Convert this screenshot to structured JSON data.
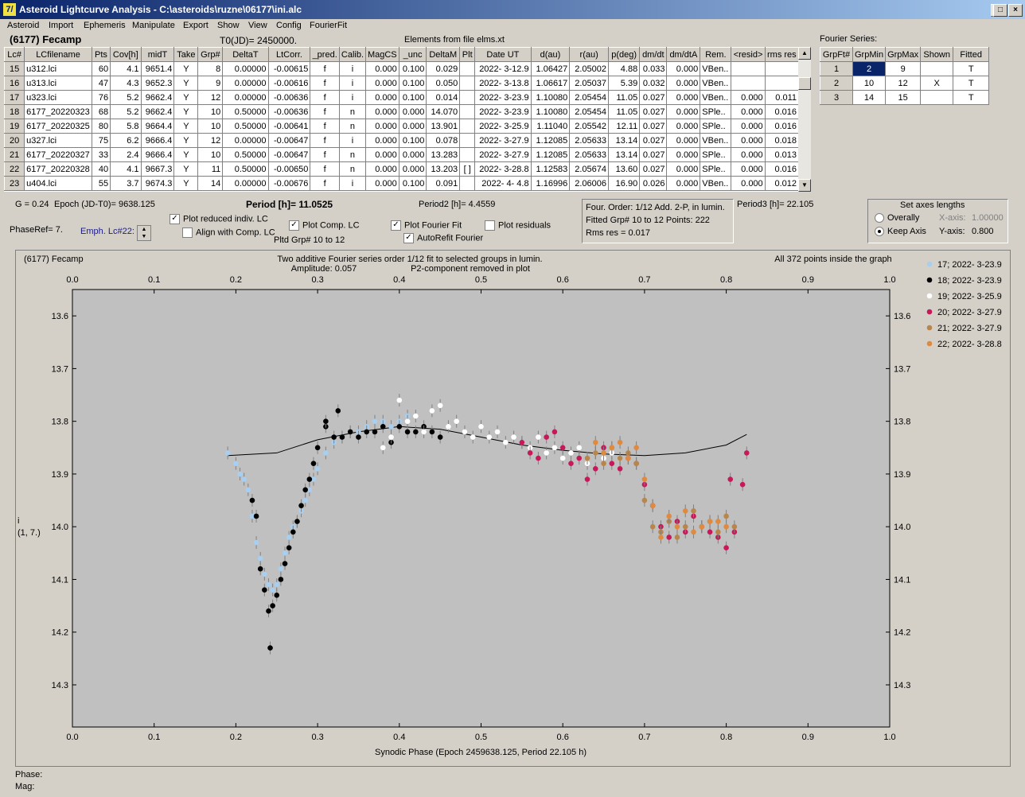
{
  "window": {
    "title": "Asteroid Lightcurve Analysis - C:\\asteroids\\ruzne\\06177\\ini.alc",
    "icon_label": "7/"
  },
  "menu": [
    "Asteroid",
    "Import",
    "Ephemeris",
    "Manipulate",
    "Export",
    "Show",
    "View",
    "Config",
    "FourierFit"
  ],
  "header": {
    "asteroid": "(6177) Fecamp",
    "t0": "T0(JD)= 2450000.",
    "elements": "Elements from file elms.xt"
  },
  "lc_table": {
    "columns": [
      "Lc#",
      "LCfilename",
      "Pts",
      "Cov[h]",
      "midT",
      "Take",
      "Grp#",
      "DeltaT",
      "LtCorr.",
      "_pred.",
      "Calib.",
      "MagCS",
      "_unc",
      "DeltaM",
      "Plt",
      "Date UT",
      "d(au)",
      "r(au)",
      "p(deg)",
      "dm/dt",
      "dm/dtA",
      "Rem.",
      "<resid>",
      "rms res"
    ],
    "rows": [
      [
        "15",
        "u312.lci",
        "60",
        "4.1",
        "9651.4",
        "Y",
        "8",
        "0.00000",
        "-0.00615",
        "f",
        "i",
        "0.000",
        "0.100",
        "0.029",
        "",
        "2022- 3-12.9",
        "1.06427",
        "2.05002",
        "4.88",
        "0.033",
        "0.000",
        "VBen..",
        "",
        ""
      ],
      [
        "16",
        "u313.lci",
        "47",
        "4.3",
        "9652.3",
        "Y",
        "9",
        "0.00000",
        "-0.00616",
        "f",
        "i",
        "0.000",
        "0.100",
        "0.050",
        "",
        "2022- 3-13.8",
        "1.06617",
        "2.05037",
        "5.39",
        "0.032",
        "0.000",
        "VBen..",
        "",
        ""
      ],
      [
        "17",
        "u323.lci",
        "76",
        "5.2",
        "9662.4",
        "Y",
        "12",
        "0.00000",
        "-0.00636",
        "f",
        "i",
        "0.000",
        "0.100",
        "0.014",
        "",
        "2022- 3-23.9",
        "1.10080",
        "2.05454",
        "11.05",
        "0.027",
        "0.000",
        "VBen..",
        "0.000",
        "0.011"
      ],
      [
        "18",
        "6177_20220323",
        "68",
        "5.2",
        "9662.4",
        "Y",
        "10",
        "0.50000",
        "-0.00636",
        "f",
        "n",
        "0.000",
        "0.000",
        "14.070",
        "",
        "2022- 3-23.9",
        "1.10080",
        "2.05454",
        "11.05",
        "0.027",
        "0.000",
        "SPle..",
        "0.000",
        "0.016"
      ],
      [
        "19",
        "6177_20220325",
        "80",
        "5.8",
        "9664.4",
        "Y",
        "10",
        "0.50000",
        "-0.00641",
        "f",
        "n",
        "0.000",
        "0.000",
        "13.901",
        "",
        "2022- 3-25.9",
        "1.11040",
        "2.05542",
        "12.11",
        "0.027",
        "0.000",
        "SPle..",
        "0.000",
        "0.016"
      ],
      [
        "20",
        "u327.lci",
        "75",
        "6.2",
        "9666.4",
        "Y",
        "12",
        "0.00000",
        "-0.00647",
        "f",
        "i",
        "0.000",
        "0.100",
        "0.078",
        "",
        "2022- 3-27.9",
        "1.12085",
        "2.05633",
        "13.14",
        "0.027",
        "0.000",
        "VBen..",
        "0.000",
        "0.018"
      ],
      [
        "21",
        "6177_20220327",
        "33",
        "2.4",
        "9666.4",
        "Y",
        "10",
        "0.50000",
        "-0.00647",
        "f",
        "n",
        "0.000",
        "0.000",
        "13.283",
        "",
        "2022- 3-27.9",
        "1.12085",
        "2.05633",
        "13.14",
        "0.027",
        "0.000",
        "SPle..",
        "0.000",
        "0.013"
      ],
      [
        "22",
        "6177_20220328",
        "40",
        "4.1",
        "9667.3",
        "Y",
        "11",
        "0.50000",
        "-0.00650",
        "f",
        "n",
        "0.000",
        "0.000",
        "13.203",
        "[ ]",
        "2022- 3-28.8",
        "1.12583",
        "2.05674",
        "13.60",
        "0.027",
        "0.000",
        "SPle..",
        "0.000",
        "0.016"
      ],
      [
        "23",
        "u404.lci",
        "55",
        "3.7",
        "9674.3",
        "Y",
        "14",
        "0.00000",
        "-0.00676",
        "f",
        "i",
        "0.000",
        "0.100",
        "0.091",
        "",
        "2022- 4- 4.8",
        "1.16996",
        "2.06006",
        "16.90",
        "0.026",
        "0.000",
        "VBen..",
        "0.000",
        "0.012"
      ]
    ]
  },
  "fourier_series": {
    "label": "Fourier Series:",
    "columns": [
      "GrpFt#",
      "GrpMin",
      "GrpMax",
      "Shown",
      "Fitted"
    ],
    "rows": [
      [
        "1",
        "2",
        "9",
        "",
        "T"
      ],
      [
        "2",
        "10",
        "12",
        "X",
        "T"
      ],
      [
        "3",
        "14",
        "15",
        "",
        "T"
      ]
    ]
  },
  "controls": {
    "g": "G = 0.24",
    "epoch": "Epoch (JD-T0)= 9638.125",
    "period": "Period [h]= 11.0525",
    "period2": "Period2 [h]= 4.4559",
    "period3": "Period3 [h]= 22.105",
    "phaseref": "PhaseRef= 7.",
    "emph": "Emph. Lc#22:",
    "plot_reduced": "Plot reduced indiv. LC",
    "align_comp": "Align with Comp. LC",
    "plot_comp": "Plot Comp. LC",
    "pltd_grp": "Pltd Grp#  10 to   12",
    "plot_fourier": "Plot Fourier Fit",
    "autorefit": "AutoRefit Fourier",
    "plot_residuals": "Plot residuals",
    "four_order": "Four. Order:  1/12    Add. 2-P, in lumin.",
    "fitted": "Fitted Grp# 10 to 12 Points: 222",
    "rms": "Rms res      = 0.017",
    "axes_title": "Set axes lengths",
    "overally": "Overally",
    "keep_axis": "Keep Axis",
    "xaxis_label": "X-axis:",
    "xaxis_value": "1.00000",
    "yaxis_label": "Y-axis:",
    "yaxis_value": "0.800"
  },
  "plot": {
    "name": "(6177) Fecamp",
    "subtitle1": "Two additive Fourier series order 1/12 fit to selected groups in lumin.",
    "subtitle2": "Amplitude: 0.057",
    "subtitle3": "P2-component removed in plot",
    "inside": "All 372 points inside the graph",
    "xlabel": "Synodic Phase (Epoch 2459638.125, Period 22.105 h)",
    "ylabel": "i",
    "ylabel2": "(1, 7.)"
  },
  "chart_data": {
    "type": "scatter",
    "xlim": [
      0.0,
      1.0
    ],
    "ylim": [
      13.55,
      14.38
    ],
    "y_inverted": true,
    "x_ticks": [
      "0.0",
      "0.1",
      "0.2",
      "0.3",
      "0.4",
      "0.5",
      "0.6",
      "0.7",
      "0.8",
      "0.9",
      "1.0"
    ],
    "y_ticks": [
      "13.6",
      "13.7",
      "13.8",
      "13.9",
      "14.0",
      "14.1",
      "14.2",
      "14.3"
    ],
    "legend_position": "right",
    "series": [
      {
        "name": "17; 2022- 3-23.9",
        "color": "#a8cef0",
        "points": [
          [
            0.19,
            13.86
          ],
          [
            0.2,
            13.88
          ],
          [
            0.205,
            13.9
          ],
          [
            0.21,
            13.91
          ],
          [
            0.215,
            13.93
          ],
          [
            0.22,
            13.98
          ],
          [
            0.225,
            14.03
          ],
          [
            0.23,
            14.06
          ],
          [
            0.235,
            14.09
          ],
          [
            0.24,
            14.11
          ],
          [
            0.245,
            14.12
          ],
          [
            0.25,
            14.11
          ],
          [
            0.255,
            14.08
          ],
          [
            0.26,
            14.05
          ],
          [
            0.265,
            14.02
          ],
          [
            0.27,
            14.0
          ],
          [
            0.275,
            13.99
          ],
          [
            0.28,
            13.97
          ],
          [
            0.285,
            13.95
          ],
          [
            0.29,
            13.93
          ],
          [
            0.295,
            13.91
          ],
          [
            0.3,
            13.89
          ],
          [
            0.31,
            13.86
          ],
          [
            0.32,
            13.84
          ],
          [
            0.33,
            13.83
          ],
          [
            0.34,
            13.82
          ],
          [
            0.35,
            13.82
          ],
          [
            0.36,
            13.81
          ],
          [
            0.37,
            13.8
          ],
          [
            0.38,
            13.8
          ],
          [
            0.39,
            13.81
          ],
          [
            0.4,
            13.8
          ],
          [
            0.41,
            13.79
          ]
        ]
      },
      {
        "name": "18; 2022- 3-23.9",
        "color": "#000000",
        "points": [
          [
            0.22,
            13.95
          ],
          [
            0.225,
            13.98
          ],
          [
            0.23,
            14.08
          ],
          [
            0.235,
            14.12
          ],
          [
            0.24,
            14.16
          ],
          [
            0.242,
            14.23
          ],
          [
            0.245,
            14.15
          ],
          [
            0.25,
            14.13
          ],
          [
            0.255,
            14.1
          ],
          [
            0.26,
            14.07
          ],
          [
            0.265,
            14.04
          ],
          [
            0.27,
            14.01
          ],
          [
            0.275,
            13.99
          ],
          [
            0.28,
            13.96
          ],
          [
            0.285,
            13.93
          ],
          [
            0.29,
            13.91
          ],
          [
            0.295,
            13.88
          ],
          [
            0.3,
            13.85
          ],
          [
            0.31,
            13.81
          ],
          [
            0.32,
            13.83
          ],
          [
            0.33,
            13.83
          ],
          [
            0.34,
            13.82
          ],
          [
            0.35,
            13.83
          ],
          [
            0.36,
            13.82
          ],
          [
            0.37,
            13.82
          ],
          [
            0.38,
            13.81
          ],
          [
            0.39,
            13.84
          ],
          [
            0.4,
            13.81
          ],
          [
            0.41,
            13.82
          ],
          [
            0.42,
            13.82
          ],
          [
            0.43,
            13.81
          ],
          [
            0.44,
            13.82
          ],
          [
            0.45,
            13.83
          ],
          [
            0.325,
            13.78
          ],
          [
            0.31,
            13.8
          ]
        ]
      },
      {
        "name": "19; 2022- 3-25.9",
        "color": "#ffffff",
        "points": [
          [
            0.38,
            13.85
          ],
          [
            0.39,
            13.83
          ],
          [
            0.4,
            13.76
          ],
          [
            0.41,
            13.8
          ],
          [
            0.42,
            13.79
          ],
          [
            0.43,
            13.82
          ],
          [
            0.44,
            13.78
          ],
          [
            0.45,
            13.77
          ],
          [
            0.46,
            13.81
          ],
          [
            0.47,
            13.8
          ],
          [
            0.48,
            13.82
          ],
          [
            0.49,
            13.83
          ],
          [
            0.5,
            13.81
          ],
          [
            0.51,
            13.83
          ],
          [
            0.52,
            13.82
          ],
          [
            0.53,
            13.84
          ],
          [
            0.54,
            13.83
          ],
          [
            0.55,
            13.84
          ],
          [
            0.56,
            13.85
          ],
          [
            0.57,
            13.83
          ],
          [
            0.58,
            13.86
          ],
          [
            0.59,
            13.85
          ],
          [
            0.6,
            13.87
          ],
          [
            0.61,
            13.86
          ],
          [
            0.62,
            13.85
          ],
          [
            0.63,
            13.88
          ],
          [
            0.64,
            13.86
          ],
          [
            0.65,
            13.87
          ],
          [
            0.66,
            13.86
          ],
          [
            0.67,
            13.87
          ]
        ]
      },
      {
        "name": "20; 2022- 3-27.9",
        "color": "#c8185a",
        "points": [
          [
            0.55,
            13.84
          ],
          [
            0.56,
            13.86
          ],
          [
            0.57,
            13.87
          ],
          [
            0.58,
            13.83
          ],
          [
            0.59,
            13.82
          ],
          [
            0.6,
            13.85
          ],
          [
            0.61,
            13.88
          ],
          [
            0.62,
            13.87
          ],
          [
            0.63,
            13.91
          ],
          [
            0.64,
            13.89
          ],
          [
            0.65,
            13.85
          ],
          [
            0.66,
            13.88
          ],
          [
            0.67,
            13.89
          ],
          [
            0.68,
            13.87
          ],
          [
            0.69,
            13.88
          ],
          [
            0.7,
            13.92
          ],
          [
            0.71,
            13.96
          ],
          [
            0.72,
            14.0
          ],
          [
            0.73,
            14.02
          ],
          [
            0.74,
            13.99
          ],
          [
            0.75,
            14.01
          ],
          [
            0.76,
            13.98
          ],
          [
            0.77,
            14.0
          ],
          [
            0.78,
            14.01
          ],
          [
            0.79,
            14.02
          ],
          [
            0.8,
            14.04
          ],
          [
            0.81,
            14.01
          ],
          [
            0.805,
            13.91
          ],
          [
            0.82,
            13.92
          ],
          [
            0.825,
            13.86
          ]
        ]
      },
      {
        "name": "21; 2022- 3-27.9",
        "color": "#b8864a",
        "points": [
          [
            0.63,
            13.87
          ],
          [
            0.64,
            13.86
          ],
          [
            0.65,
            13.88
          ],
          [
            0.66,
            13.85
          ],
          [
            0.67,
            13.87
          ],
          [
            0.68,
            13.86
          ],
          [
            0.69,
            13.88
          ],
          [
            0.7,
            13.95
          ],
          [
            0.71,
            14.0
          ],
          [
            0.72,
            14.01
          ],
          [
            0.73,
            13.99
          ],
          [
            0.74,
            14.02
          ],
          [
            0.75,
            14.0
          ],
          [
            0.76,
            13.97
          ],
          [
            0.77,
            14.0
          ],
          [
            0.78,
            13.99
          ],
          [
            0.79,
            14.01
          ],
          [
            0.8,
            13.98
          ],
          [
            0.81,
            14.0
          ]
        ]
      },
      {
        "name": "22; 2022- 3-28.8",
        "color": "#e08a40",
        "points": [
          [
            0.64,
            13.84
          ],
          [
            0.65,
            13.86
          ],
          [
            0.66,
            13.85
          ],
          [
            0.67,
            13.84
          ],
          [
            0.68,
            13.87
          ],
          [
            0.69,
            13.85
          ],
          [
            0.7,
            13.91
          ],
          [
            0.71,
            13.96
          ],
          [
            0.72,
            14.02
          ],
          [
            0.73,
            13.98
          ],
          [
            0.74,
            14.0
          ],
          [
            0.75,
            13.97
          ],
          [
            0.76,
            14.01
          ],
          [
            0.77,
            14.0
          ],
          [
            0.78,
            13.99
          ],
          [
            0.79,
            13.99
          ],
          [
            0.8,
            14.0
          ]
        ]
      }
    ],
    "fit_curve": [
      [
        0.19,
        13.865
      ],
      [
        0.25,
        13.86
      ],
      [
        0.3,
        13.835
      ],
      [
        0.35,
        13.82
      ],
      [
        0.4,
        13.81
      ],
      [
        0.45,
        13.815
      ],
      [
        0.5,
        13.83
      ],
      [
        0.55,
        13.845
      ],
      [
        0.6,
        13.855
      ],
      [
        0.65,
        13.862
      ],
      [
        0.7,
        13.865
      ],
      [
        0.75,
        13.86
      ],
      [
        0.8,
        13.845
      ],
      [
        0.825,
        13.825
      ]
    ]
  },
  "status": {
    "phase": "Phase:",
    "mag": "Mag:"
  }
}
